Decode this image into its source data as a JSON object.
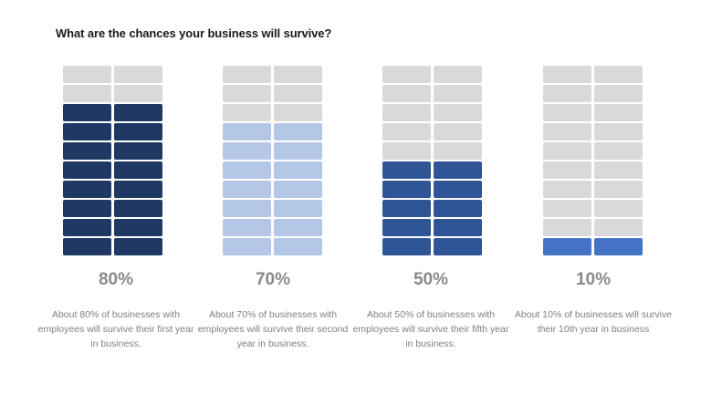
{
  "title": "What are the chances your business will survive?",
  "colors": {
    "empty": "#d9d9d9",
    "series": [
      "#1f3864",
      "#b4c7e7",
      "#2f5597",
      "#4472c4"
    ]
  },
  "chart_data": {
    "type": "waffle",
    "title": "What are the chances your business will survive?",
    "rows": 10,
    "columns": 2,
    "items": [
      {
        "label": "80%",
        "value": 80,
        "caption": "About 80% of businesses with employees will survive their first year in business."
      },
      {
        "label": "70%",
        "value": 70,
        "caption": "About 70% of businesses with employees will survive their second year in business."
      },
      {
        "label": "50%",
        "value": 50,
        "caption": "About 50% of businesses with employees will survive their fifth year in business."
      },
      {
        "label": "10%",
        "value": 10,
        "caption": "About 10% of businesses will survive their 10th year in business"
      }
    ]
  }
}
